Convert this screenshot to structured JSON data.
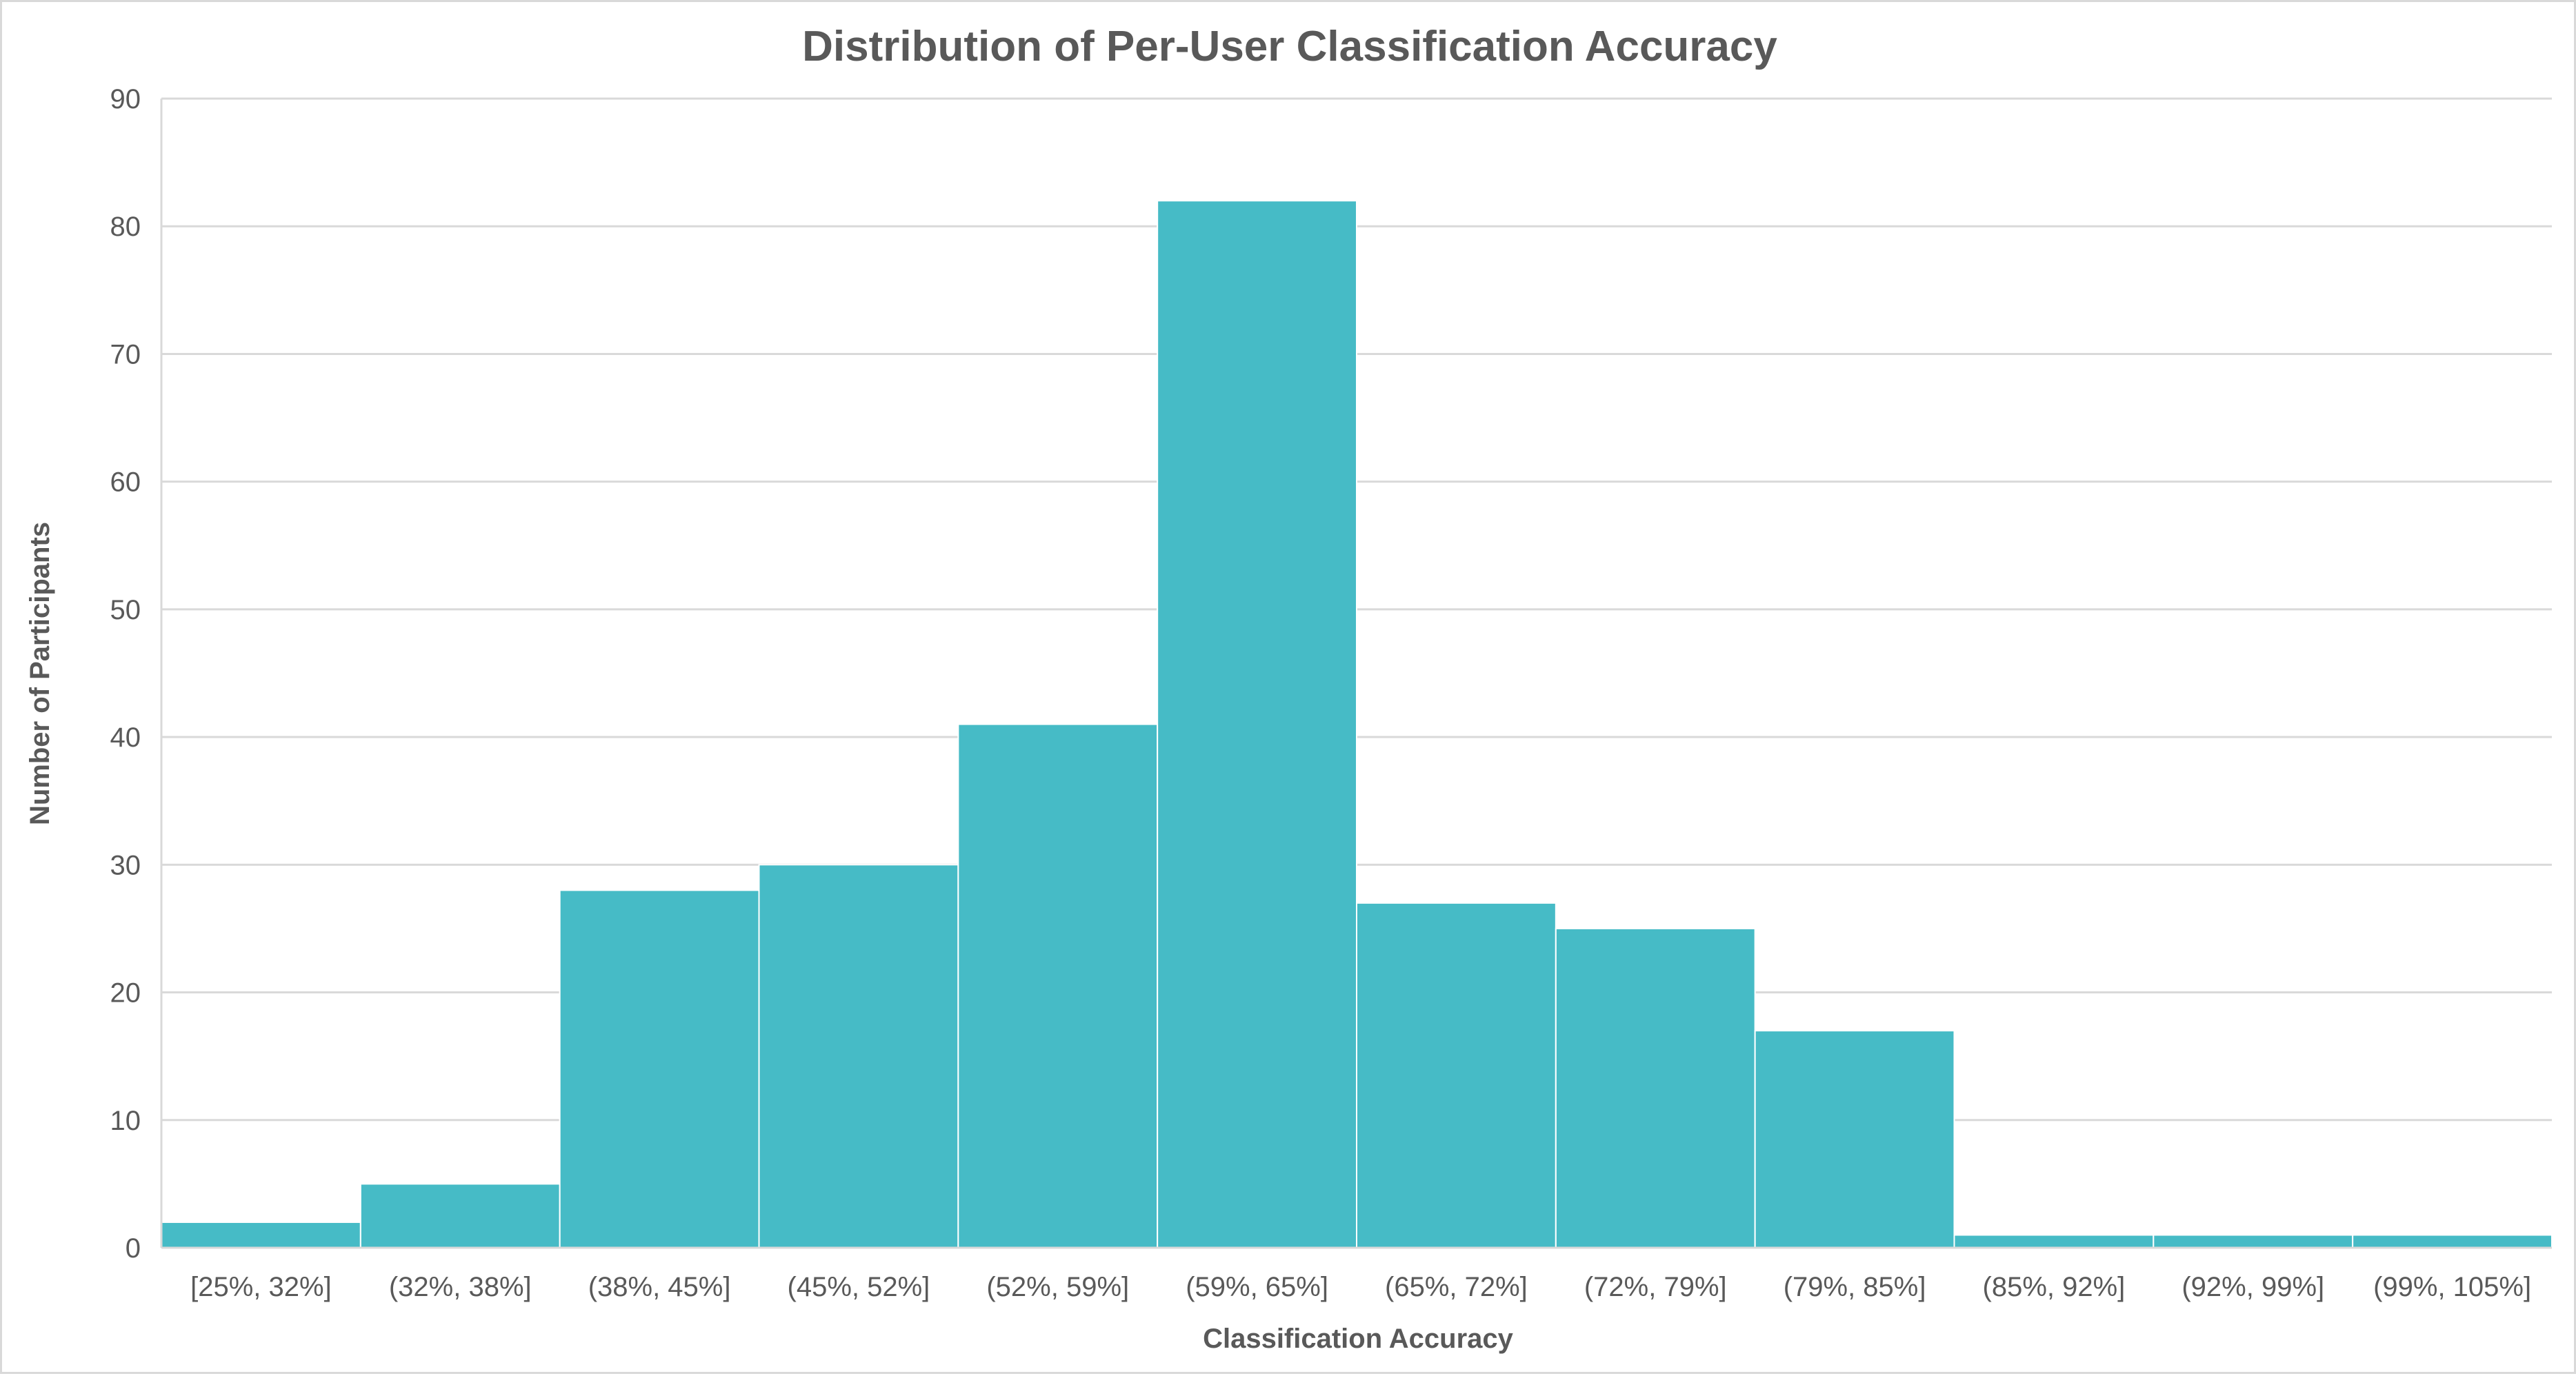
{
  "chart_data": {
    "type": "bar",
    "title": "Distribution of Per-User Classification Accuracy",
    "xlabel": "Classification Accuracy",
    "ylabel": "Number of Participants",
    "categories": [
      "[25%, 32%]",
      "(32%, 38%]",
      "(38%, 45%]",
      "(45%, 52%]",
      "(52%, 59%]",
      "(59%, 65%]",
      "(65%, 72%]",
      "(72%, 79%]",
      "(79%, 85%]",
      "(85%, 92%]",
      "(92%, 99%]",
      "(99%, 105%]"
    ],
    "values": [
      2,
      5,
      28,
      30,
      41,
      82,
      27,
      25,
      17,
      1,
      1,
      1
    ],
    "ylim": [
      0,
      90
    ],
    "yticks": [
      0,
      10,
      20,
      30,
      40,
      50,
      60,
      70,
      80,
      90
    ],
    "grid": true,
    "legend": "none",
    "bar_color": "#46BBC6"
  }
}
